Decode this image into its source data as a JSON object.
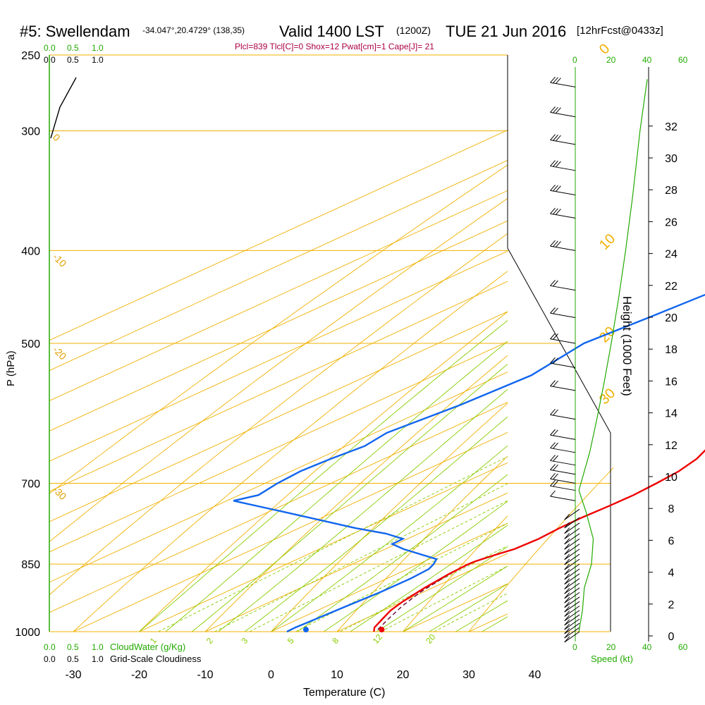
{
  "header": {
    "station": "#5: Swellendam",
    "coords": "-34.047°,20.4729° (138,35)",
    "valid": "Valid 1400 LST",
    "zulu": "(1200Z)",
    "date": "TUE 21 Jun 2016",
    "forecast": "[12hrFcst@0433z]",
    "indices": "Plcl=839 Tlcl[C]=0 Shox=12 Pwat[cm]=1 Cape[J]= 21"
  },
  "scales": {
    "cloudwater_ticks": [
      "0.0",
      "0.5",
      "1.0"
    ],
    "cloudiness_ticks": [
      "0.0",
      "0.5",
      "1.0"
    ],
    "cloudwater_label": "CloudWater (g/Kg)",
    "cloudiness_label": "Grid-Scale Cloudiness",
    "speed_ticks": [
      "0",
      "20",
      "40",
      "60"
    ],
    "speed_label": "Speed (kt)"
  },
  "colors": {
    "isotherm": "#f0b000",
    "dry_adiabat": "#f0b000",
    "moist_adiabat": "#88cc00",
    "mixing_ratio": "#88cc00",
    "temperature": "#ee0000",
    "dewpoint": "#1166ee",
    "parcel": "#660033",
    "green": "#22aa00"
  },
  "chart_data": {
    "type": "skew-t",
    "xlabel": "Temperature (C)",
    "ylabel": "P (hPa)",
    "y2label": "Height (1000 Feet)",
    "x_ticks": [
      -30,
      -20,
      -10,
      0,
      10,
      20,
      30,
      40
    ],
    "pressure_ticks": [
      250,
      300,
      400,
      500,
      700,
      850,
      1000
    ],
    "height_ticks": [
      0,
      2,
      4,
      6,
      8,
      10,
      12,
      14,
      16,
      18,
      20,
      22,
      24,
      26,
      28,
      30,
      32
    ],
    "dry_adiabat_labels": [
      "0",
      "10",
      "20",
      "30"
    ],
    "isotherm_labels": [
      "0",
      "-10",
      "-20",
      "-30"
    ],
    "mixing_ratio_labels": [
      "1",
      "2",
      "3",
      "5",
      "8",
      "12",
      "20"
    ],
    "temperature_profile": {
      "name": "Temperature",
      "p": [
        1000,
        990,
        970,
        950,
        930,
        900,
        870,
        850,
        845,
        840,
        830,
        820,
        800,
        780,
        760,
        740,
        720,
        700,
        680,
        660,
        640,
        600,
        550,
        500,
        450,
        400,
        350,
        300,
        280,
        265
      ],
      "t": [
        15.6,
        14.3,
        12.7,
        11.1,
        10.0,
        8.8,
        7.9,
        7.6,
        7.7,
        8.0,
        8.7,
        9.6,
        9.9,
        9.5,
        9.4,
        9.7,
        9.8,
        9.4,
        8.8,
        7.4,
        5.1,
        0.3,
        -6.9,
        -14.5,
        -23.2,
        -32.3,
        -43.9,
        -57.4,
        -63.2,
        -66.9
      ]
    },
    "dewpoint_profile": {
      "name": "Dewpoint",
      "p": [
        1000,
        990,
        970,
        940,
        910,
        880,
        860,
        850,
        840,
        820,
        810,
        800,
        790,
        780,
        750,
        730,
        720,
        700,
        680,
        660,
        640,
        620,
        580,
        540,
        500,
        470,
        440,
        400,
        380,
        350,
        320,
        300,
        280,
        265
      ],
      "t": [
        2.4,
        2.3,
        2.6,
        3.0,
        3.5,
        3.6,
        3.2,
        2.3,
        1.1,
        -7.2,
        -10.6,
        -10.7,
        -15.0,
        -21.2,
        -37.6,
        -49.0,
        -47.1,
        -48.1,
        -48.6,
        -48.1,
        -47.2,
        -48.2,
        -46.3,
        -45.3,
        -47.9,
        -46.6,
        -45.4,
        -50.1,
        -54.8,
        -61.0,
        -67.1,
        -71.4,
        -76.1,
        -79.3
      ]
    },
    "parcel_path": {
      "name": "Parcel",
      "p": [
        995,
        970,
        940,
        910,
        880,
        860,
        850
      ],
      "t": [
        15.5,
        13.6,
        11.4,
        9.6,
        8.4,
        7.7,
        7.6
      ]
    },
    "surface_temperature_c": 16.1,
    "surface_dewpoint_c": 4.6,
    "wind_barbs": [
      {
        "p": 1000,
        "speed": 10
      },
      {
        "p": 990,
        "speed": 10
      },
      {
        "p": 980,
        "speed": 10
      },
      {
        "p": 970,
        "speed": 10
      },
      {
        "p": 960,
        "speed": 10
      },
      {
        "p": 950,
        "speed": 10
      },
      {
        "p": 940,
        "speed": 10
      },
      {
        "p": 930,
        "speed": 10
      },
      {
        "p": 920,
        "speed": 10
      },
      {
        "p": 910,
        "speed": 10
      },
      {
        "p": 900,
        "speed": 10
      },
      {
        "p": 890,
        "speed": 10
      },
      {
        "p": 880,
        "speed": 10
      },
      {
        "p": 870,
        "speed": 10
      },
      {
        "p": 860,
        "speed": 10
      },
      {
        "p": 850,
        "speed": 10
      },
      {
        "p": 840,
        "speed": 10
      },
      {
        "p": 830,
        "speed": 10
      },
      {
        "p": 820,
        "speed": 10
      },
      {
        "p": 810,
        "speed": 10
      },
      {
        "p": 800,
        "speed": 10
      },
      {
        "p": 790,
        "speed": 10
      },
      {
        "p": 780,
        "speed": 10
      },
      {
        "p": 770,
        "speed": 10
      },
      {
        "p": 760,
        "speed": 10
      },
      {
        "p": 745,
        "speed": 10
      },
      {
        "p": 730,
        "speed": 10
      },
      {
        "p": 712,
        "speed": 20
      },
      {
        "p": 700,
        "speed": 20
      },
      {
        "p": 685,
        "speed": 20
      },
      {
        "p": 670,
        "speed": 20
      },
      {
        "p": 650,
        "speed": 20
      },
      {
        "p": 630,
        "speed": 20
      },
      {
        "p": 600,
        "speed": 20
      },
      {
        "p": 560,
        "speed": 20
      },
      {
        "p": 530,
        "speed": 20
      },
      {
        "p": 500,
        "speed": 20
      },
      {
        "p": 470,
        "speed": 20
      },
      {
        "p": 440,
        "speed": 20
      },
      {
        "p": 400,
        "speed": 30
      },
      {
        "p": 370,
        "speed": 30
      },
      {
        "p": 350,
        "speed": 30
      },
      {
        "p": 330,
        "speed": 30
      },
      {
        "p": 310,
        "speed": 30
      },
      {
        "p": 290,
        "speed": 30
      },
      {
        "p": 270,
        "speed": 30
      }
    ],
    "wind_speed_profile": {
      "name": "Speed (kt)",
      "p": [
        1000,
        950,
        900,
        850,
        800,
        750,
        712,
        650,
        600,
        550,
        500,
        450,
        400,
        350,
        300,
        265
      ],
      "speed": [
        2,
        4,
        5,
        9,
        10,
        6,
        2,
        8,
        12,
        16,
        20,
        24,
        28,
        32,
        36,
        40
      ]
    }
  }
}
